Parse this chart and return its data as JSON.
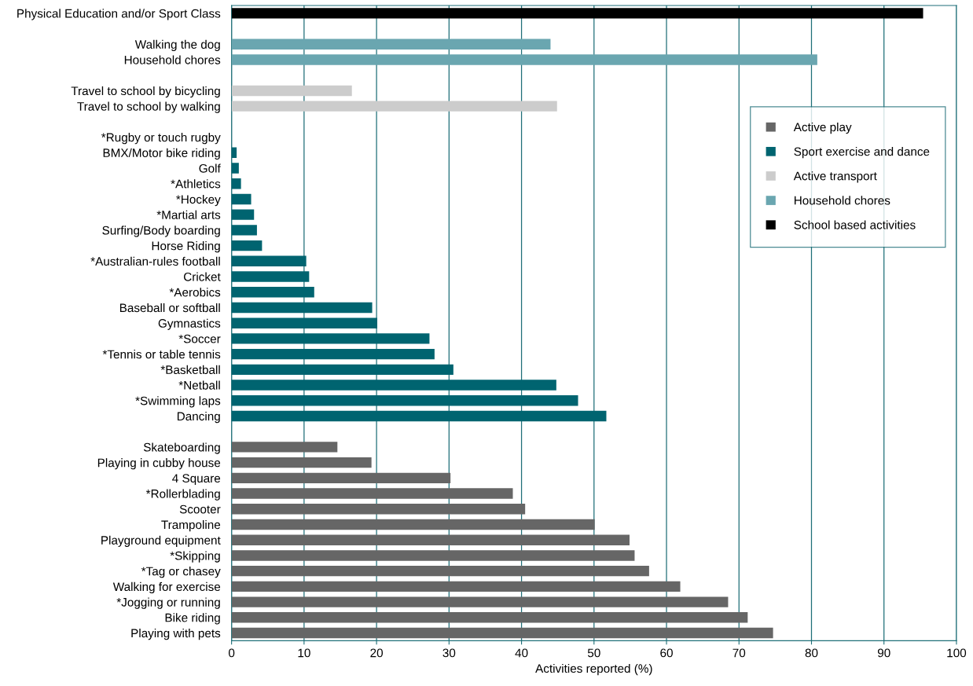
{
  "chart_data": {
    "type": "bar",
    "orientation": "horizontal",
    "xlabel": "Activities reported (%)",
    "categories": [
      "Physical Education and/or Sport Class",
      null,
      "Walking the dog",
      "Household chores",
      null,
      "Travel to school by bicycling",
      "Travel to school by walking",
      null,
      "*Rugby or touch rugby",
      "BMX/Motor bike riding",
      "Golf",
      "*Athletics",
      "*Hockey",
      "*Martial arts",
      "Surfing/Body boarding",
      "Horse Riding",
      "*Australian-rules football",
      "Cricket",
      "*Aerobics",
      "Baseball or softball",
      "Gymnastics",
      "*Soccer",
      "*Tennis or table tennis",
      "*Basketball",
      "*Netball",
      "*Swimming laps",
      "Dancing",
      null,
      "Skateboarding",
      "Playing in cubby house",
      "4 Square",
      "*Rollerblading",
      "Scooter",
      "Trampoline",
      "Playground equipment",
      "*Skipping",
      "*Tag or chasey",
      "Walking for exercise",
      "*Jogging or running",
      "Bike riding",
      "Playing with pets"
    ],
    "series": [
      {
        "name": "Active play",
        "color": "#666666",
        "values": [
          null,
          null,
          null,
          null,
          null,
          null,
          null,
          null,
          null,
          null,
          null,
          null,
          null,
          null,
          null,
          null,
          null,
          null,
          null,
          null,
          null,
          null,
          null,
          null,
          null,
          null,
          null,
          null,
          14.6,
          19.3,
          30.2,
          38.8,
          40.5,
          50.1,
          54.9,
          55.6,
          57.6,
          61.9,
          68.5,
          71.2,
          74.7
        ]
      },
      {
        "name": "Sport exercise and dance",
        "color": "#006470",
        "values": [
          null,
          null,
          null,
          null,
          null,
          null,
          null,
          null,
          0,
          0.7,
          1.0,
          1.3,
          2.7,
          3.1,
          3.5,
          4.2,
          10.3,
          10.7,
          11.4,
          19.4,
          20.1,
          27.3,
          28.0,
          30.6,
          44.8,
          47.8,
          51.7,
          null,
          null,
          null,
          null,
          null,
          null,
          null,
          null,
          null,
          null,
          null,
          null,
          null,
          null
        ]
      },
      {
        "name": "Active transport",
        "color": "#cccccc",
        "values": [
          null,
          null,
          null,
          null,
          null,
          16.6,
          44.9,
          null,
          null,
          null,
          null,
          null,
          null,
          null,
          null,
          null,
          null,
          null,
          null,
          null,
          null,
          null,
          null,
          null,
          null,
          null,
          null,
          null,
          null,
          null,
          null,
          null,
          null,
          null,
          null,
          null,
          null,
          null,
          null,
          null,
          null
        ]
      },
      {
        "name": "Household chores",
        "color": "#6aa6b0",
        "values": [
          null,
          null,
          44.0,
          80.8,
          null,
          null,
          null,
          null,
          null,
          null,
          null,
          null,
          null,
          null,
          null,
          null,
          null,
          null,
          null,
          null,
          null,
          null,
          null,
          null,
          null,
          null,
          null,
          null,
          null,
          null,
          null,
          null,
          null,
          null,
          null,
          null,
          null,
          null,
          null,
          null,
          null
        ]
      },
      {
        "name": "School based activities",
        "color": "#000000",
        "values": [
          95.4,
          null,
          null,
          null,
          null,
          null,
          null,
          null,
          null,
          null,
          null,
          null,
          null,
          null,
          null,
          null,
          null,
          null,
          null,
          null,
          null,
          null,
          null,
          null,
          null,
          null,
          null,
          null,
          null,
          null,
          null,
          null,
          null,
          null,
          null,
          null,
          null,
          null,
          null,
          null,
          null
        ]
      }
    ],
    "xlim": [
      0,
      100
    ],
    "xticks": [
      0,
      10,
      20,
      30,
      40,
      50,
      60,
      70,
      80,
      90,
      100
    ],
    "grid": "x",
    "legend": "right"
  }
}
